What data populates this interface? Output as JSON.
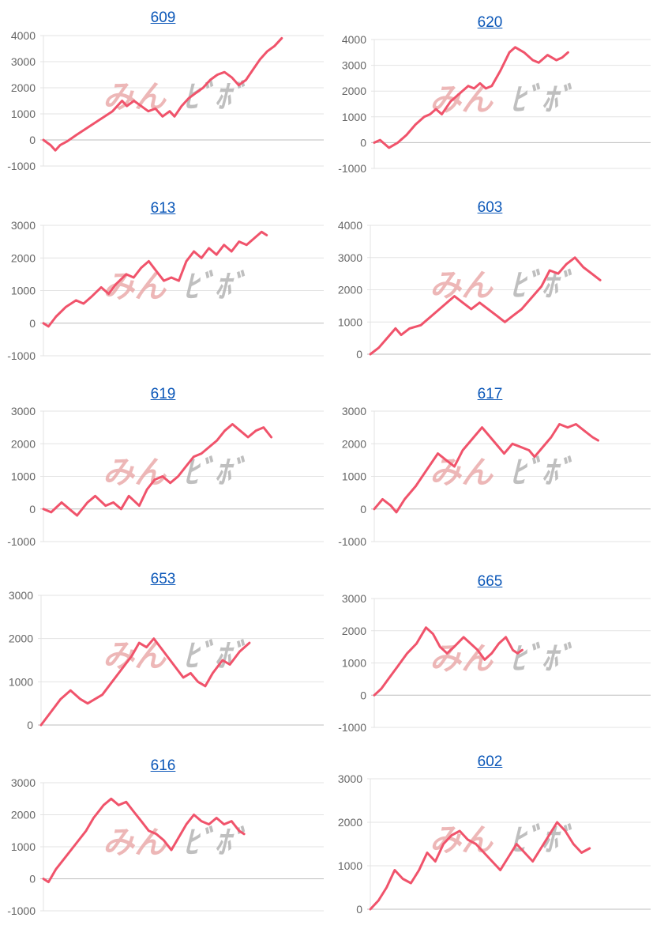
{
  "watermark": {
    "part1": "みん",
    "part2": "ﾋﾞﾎﾞ"
  },
  "colors": {
    "line": "#f0536b",
    "title": "#0b57b8"
  },
  "chart_data": [
    {
      "type": "line",
      "title": "609",
      "yticks": [
        4000,
        3000,
        2000,
        1000,
        0,
        -1000
      ],
      "ylim": [
        -1000,
        4000
      ],
      "x": [
        0,
        1,
        2,
        3,
        4,
        5,
        6,
        7,
        8,
        9,
        10,
        11,
        12,
        13,
        14,
        15,
        16,
        17,
        18,
        19,
        20,
        21,
        22,
        23,
        24,
        25,
        26,
        27,
        28,
        29,
        30,
        31,
        32,
        33,
        34,
        35,
        36,
        37,
        38,
        39,
        40,
        41,
        42,
        43,
        44,
        45,
        46,
        47,
        48,
        49,
        50,
        51,
        52,
        53,
        54,
        55,
        56,
        57,
        58,
        59,
        60,
        61,
        62,
        63
      ],
      "values": [
        0,
        -200,
        -400,
        -200,
        -100,
        0,
        200,
        400,
        500,
        700,
        800,
        1000,
        1200,
        1500,
        1300,
        1500,
        1400,
        1300,
        1200,
        1100,
        1200,
        1000,
        900,
        1100,
        900,
        1100,
        1400,
        1600,
        1700,
        1900,
        2000,
        2200,
        2300,
        2400,
        2500,
        2600,
        2500,
        2400,
        2300,
        2200,
        2100,
        2200,
        2400,
        2600,
        2900,
        3200,
        3400,
        3500,
        3600,
        3800,
        3900,
        3900,
        3900,
        3900,
        3900,
        3900,
        3900,
        3900,
        3900,
        3900,
        3900,
        3900,
        3900,
        3900
      ],
      "points": [
        [
          0,
          0
        ],
        [
          3,
          -200
        ],
        [
          5,
          -400
        ],
        [
          7,
          -200
        ],
        [
          10,
          -50
        ],
        [
          14,
          200
        ],
        [
          19,
          500
        ],
        [
          24,
          800
        ],
        [
          29,
          1100
        ],
        [
          33,
          1500
        ],
        [
          35,
          1300
        ],
        [
          38,
          1500
        ],
        [
          41,
          1300
        ],
        [
          44,
          1100
        ],
        [
          47,
          1200
        ],
        [
          50,
          900
        ],
        [
          53,
          1100
        ],
        [
          55,
          900
        ],
        [
          58,
          1300
        ],
        [
          61,
          1600
        ],
        [
          64,
          1800
        ],
        [
          67,
          2000
        ],
        [
          70,
          2300
        ],
        [
          73,
          2500
        ],
        [
          76,
          2600
        ],
        [
          79,
          2400
        ],
        [
          82,
          2100
        ],
        [
          85,
          2300
        ],
        [
          88,
          2700
        ],
        [
          91,
          3100
        ],
        [
          94,
          3400
        ],
        [
          97,
          3600
        ],
        [
          100,
          3900
        ]
      ]
    },
    {
      "type": "line",
      "title": "620",
      "yticks": [
        4000,
        3000,
        2000,
        1000,
        0,
        -1000
      ],
      "ylim": [
        -1000,
        4000
      ],
      "points": [
        [
          0,
          0
        ],
        [
          2,
          100
        ],
        [
          5,
          -200
        ],
        [
          8,
          0
        ],
        [
          11,
          300
        ],
        [
          14,
          700
        ],
        [
          17,
          1000
        ],
        [
          19,
          1100
        ],
        [
          21,
          1300
        ],
        [
          23,
          1100
        ],
        [
          26,
          1600
        ],
        [
          29,
          1900
        ],
        [
          32,
          2200
        ],
        [
          34,
          2100
        ],
        [
          36,
          2300
        ],
        [
          38,
          2100
        ],
        [
          40,
          2200
        ],
        [
          43,
          2800
        ],
        [
          46,
          3500
        ],
        [
          48,
          3700
        ],
        [
          51,
          3500
        ],
        [
          54,
          3200
        ],
        [
          56,
          3100
        ],
        [
          59,
          3400
        ],
        [
          62,
          3200
        ],
        [
          64,
          3300
        ],
        [
          66,
          3500
        ]
      ]
    },
    {
      "type": "line",
      "title": "613",
      "yticks": [
        3000,
        2000,
        1000,
        0,
        -1000
      ],
      "ylim": [
        -1000,
        3000
      ],
      "points": [
        [
          0,
          0
        ],
        [
          2,
          -100
        ],
        [
          5,
          200
        ],
        [
          9,
          500
        ],
        [
          13,
          700
        ],
        [
          16,
          600
        ],
        [
          19,
          800
        ],
        [
          23,
          1100
        ],
        [
          26,
          900
        ],
        [
          29,
          1200
        ],
        [
          33,
          1500
        ],
        [
          36,
          1400
        ],
        [
          39,
          1700
        ],
        [
          42,
          1900
        ],
        [
          45,
          1600
        ],
        [
          48,
          1300
        ],
        [
          51,
          1400
        ],
        [
          54,
          1300
        ],
        [
          57,
          1900
        ],
        [
          60,
          2200
        ],
        [
          63,
          2000
        ],
        [
          66,
          2300
        ],
        [
          69,
          2100
        ],
        [
          72,
          2400
        ],
        [
          75,
          2200
        ],
        [
          78,
          2500
        ],
        [
          81,
          2400
        ],
        [
          84,
          2600
        ],
        [
          87,
          2800
        ],
        [
          89,
          2700
        ]
      ]
    },
    {
      "type": "line",
      "title": "603",
      "yticks": [
        4000,
        3000,
        2000,
        1000,
        0
      ],
      "ylim": [
        0,
        4000
      ],
      "points": [
        [
          0,
          0
        ],
        [
          3,
          200
        ],
        [
          6,
          500
        ],
        [
          9,
          800
        ],
        [
          11,
          600
        ],
        [
          14,
          800
        ],
        [
          18,
          900
        ],
        [
          22,
          1200
        ],
        [
          26,
          1500
        ],
        [
          30,
          1800
        ],
        [
          33,
          1600
        ],
        [
          36,
          1400
        ],
        [
          39,
          1600
        ],
        [
          42,
          1400
        ],
        [
          45,
          1200
        ],
        [
          48,
          1000
        ],
        [
          51,
          1200
        ],
        [
          54,
          1400
        ],
        [
          58,
          1800
        ],
        [
          61,
          2100
        ],
        [
          64,
          2600
        ],
        [
          67,
          2500
        ],
        [
          70,
          2800
        ],
        [
          73,
          3000
        ],
        [
          76,
          2700
        ],
        [
          79,
          2500
        ],
        [
          82,
          2300
        ]
      ]
    },
    {
      "type": "line",
      "title": "619",
      "yticks": [
        3000,
        2000,
        1000,
        0,
        -1000
      ],
      "ylim": [
        -1000,
        3000
      ],
      "points": [
        [
          0,
          0
        ],
        [
          3,
          -100
        ],
        [
          7,
          200
        ],
        [
          10,
          0
        ],
        [
          13,
          -200
        ],
        [
          17,
          200
        ],
        [
          20,
          400
        ],
        [
          24,
          100
        ],
        [
          27,
          200
        ],
        [
          30,
          0
        ],
        [
          33,
          400
        ],
        [
          37,
          100
        ],
        [
          40,
          600
        ],
        [
          43,
          900
        ],
        [
          46,
          1000
        ],
        [
          49,
          800
        ],
        [
          52,
          1000
        ],
        [
          55,
          1300
        ],
        [
          58,
          1600
        ],
        [
          61,
          1700
        ],
        [
          64,
          1900
        ],
        [
          67,
          2100
        ],
        [
          70,
          2400
        ],
        [
          73,
          2600
        ],
        [
          76,
          2400
        ],
        [
          79,
          2200
        ],
        [
          82,
          2400
        ],
        [
          85,
          2500
        ],
        [
          88,
          2200
        ]
      ]
    },
    {
      "type": "line",
      "title": "617",
      "yticks": [
        3000,
        2000,
        1000,
        0,
        -1000
      ],
      "ylim": [
        -1000,
        3000
      ],
      "points": [
        [
          0,
          0
        ],
        [
          3,
          300
        ],
        [
          6,
          100
        ],
        [
          8,
          -100
        ],
        [
          11,
          300
        ],
        [
          15,
          700
        ],
        [
          19,
          1200
        ],
        [
          23,
          1700
        ],
        [
          26,
          1500
        ],
        [
          29,
          1300
        ],
        [
          32,
          1800
        ],
        [
          36,
          2200
        ],
        [
          39,
          2500
        ],
        [
          42,
          2200
        ],
        [
          45,
          1900
        ],
        [
          47,
          1700
        ],
        [
          50,
          2000
        ],
        [
          53,
          1900
        ],
        [
          56,
          1800
        ],
        [
          58,
          1600
        ],
        [
          61,
          1900
        ],
        [
          64,
          2200
        ],
        [
          67,
          2600
        ],
        [
          70,
          2500
        ],
        [
          73,
          2600
        ],
        [
          76,
          2400
        ],
        [
          79,
          2200
        ],
        [
          81,
          2100
        ]
      ]
    },
    {
      "type": "line",
      "title": "653",
      "yticks": [
        3000,
        2000,
        1000,
        0
      ],
      "ylim": [
        0,
        3000
      ],
      "points": [
        [
          0,
          0
        ],
        [
          4,
          300
        ],
        [
          8,
          600
        ],
        [
          12,
          800
        ],
        [
          16,
          600
        ],
        [
          19,
          500
        ],
        [
          22,
          600
        ],
        [
          25,
          700
        ],
        [
          29,
          1000
        ],
        [
          33,
          1300
        ],
        [
          37,
          1600
        ],
        [
          40,
          1900
        ],
        [
          43,
          1800
        ],
        [
          46,
          2000
        ],
        [
          50,
          1700
        ],
        [
          54,
          1400
        ],
        [
          58,
          1100
        ],
        [
          61,
          1200
        ],
        [
          64,
          1000
        ],
        [
          67,
          900
        ],
        [
          70,
          1200
        ],
        [
          74,
          1500
        ],
        [
          77,
          1400
        ],
        [
          81,
          1700
        ],
        [
          85,
          1900
        ]
      ]
    },
    {
      "type": "line",
      "title": "665",
      "yticks": [
        3000,
        2000,
        1000,
        0,
        -1000
      ],
      "ylim": [
        -1000,
        3000
      ],
      "points": [
        [
          0,
          0
        ],
        [
          3,
          200
        ],
        [
          6,
          500
        ],
        [
          10,
          900
        ],
        [
          14,
          1300
        ],
        [
          18,
          1600
        ],
        [
          22,
          2100
        ],
        [
          25,
          1900
        ],
        [
          28,
          1500
        ],
        [
          31,
          1300
        ],
        [
          34,
          1500
        ],
        [
          38,
          1800
        ],
        [
          41,
          1600
        ],
        [
          44,
          1400
        ],
        [
          47,
          1100
        ],
        [
          50,
          1300
        ],
        [
          53,
          1600
        ],
        [
          56,
          1800
        ],
        [
          59,
          1400
        ],
        [
          61,
          1300
        ],
        [
          63,
          1400
        ]
      ]
    },
    {
      "type": "line",
      "title": "616",
      "yticks": [
        3000,
        2000,
        1000,
        0,
        -1000
      ],
      "ylim": [
        -1000,
        3000
      ],
      "points": [
        [
          0,
          0
        ],
        [
          2,
          -100
        ],
        [
          5,
          300
        ],
        [
          9,
          700
        ],
        [
          13,
          1100
        ],
        [
          17,
          1500
        ],
        [
          20,
          1900
        ],
        [
          24,
          2300
        ],
        [
          27,
          2500
        ],
        [
          30,
          2300
        ],
        [
          33,
          2400
        ],
        [
          36,
          2100
        ],
        [
          39,
          1800
        ],
        [
          42,
          1500
        ],
        [
          45,
          1400
        ],
        [
          48,
          1200
        ],
        [
          51,
          900
        ],
        [
          54,
          1300
        ],
        [
          57,
          1700
        ],
        [
          60,
          2000
        ],
        [
          63,
          1800
        ],
        [
          66,
          1700
        ],
        [
          69,
          1900
        ],
        [
          72,
          1700
        ],
        [
          75,
          1800
        ],
        [
          78,
          1500
        ],
        [
          80,
          1400
        ]
      ]
    },
    {
      "type": "line",
      "title": "602",
      "yticks": [
        3000,
        2000,
        1000,
        0
      ],
      "ylim": [
        0,
        3000
      ],
      "points": [
        [
          0,
          0
        ],
        [
          3,
          200
        ],
        [
          6,
          500
        ],
        [
          9,
          900
        ],
        [
          12,
          700
        ],
        [
          15,
          600
        ],
        [
          18,
          900
        ],
        [
          21,
          1300
        ],
        [
          24,
          1100
        ],
        [
          27,
          1500
        ],
        [
          30,
          1700
        ],
        [
          33,
          1800
        ],
        [
          36,
          1600
        ],
        [
          39,
          1500
        ],
        [
          42,
          1300
        ],
        [
          45,
          1100
        ],
        [
          48,
          900
        ],
        [
          51,
          1200
        ],
        [
          54,
          1500
        ],
        [
          57,
          1300
        ],
        [
          60,
          1100
        ],
        [
          63,
          1400
        ],
        [
          66,
          1700
        ],
        [
          69,
          2000
        ],
        [
          72,
          1800
        ],
        [
          75,
          1500
        ],
        [
          78,
          1300
        ],
        [
          81,
          1400
        ]
      ]
    }
  ]
}
